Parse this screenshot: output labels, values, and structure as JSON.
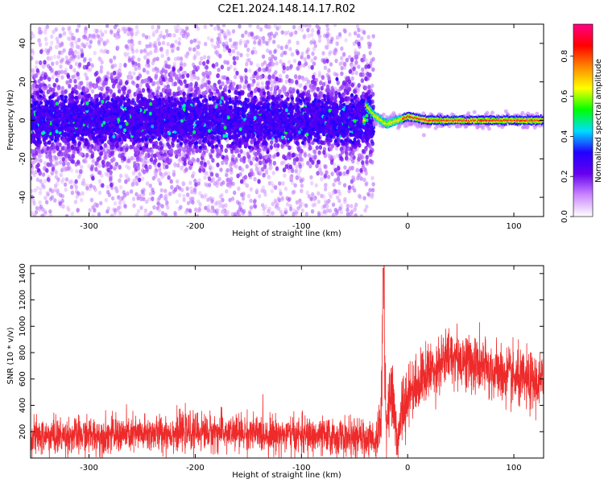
{
  "title": "C2E1.2024.148.14.17.R02",
  "colors": {
    "axis": "#000000",
    "snr_line": "#ee2a2a",
    "spectrogram_bg": "#ffffff"
  },
  "chart_data": [
    {
      "type": "heatmap",
      "xlabel": "Height of straight line (km)",
      "ylabel": "Frequency (Hz)",
      "xlim": [
        -355,
        128
      ],
      "ylim": [
        -50,
        50
      ],
      "xticks": [
        -300,
        -200,
        -100,
        0,
        100
      ],
      "yticks": [
        -40,
        -20,
        0,
        20,
        40
      ],
      "colorbar": {
        "label": "Normalized spectral amplitude",
        "range": [
          0.0,
          0.96
        ],
        "ticks": [
          0.0,
          0.2,
          0.4,
          0.6,
          0.8
        ],
        "colormap": [
          "#ffffff",
          "#cc88ff",
          "#6600ee",
          "#2200ff",
          "#00ddff",
          "#00ff00",
          "#ffff00",
          "#ff8800",
          "#ff0000",
          "#ff0088"
        ]
      },
      "description_points": {
        "noise_region_x": [
          -355,
          -32
        ],
        "ridge_x": [
          -32,
          128
        ],
        "ridge_path": [
          [
            -40,
            8
          ],
          [
            -30,
            2
          ],
          [
            -20,
            -2
          ],
          [
            -10,
            0
          ],
          [
            0,
            2
          ],
          [
            20,
            0
          ],
          [
            60,
            0
          ],
          [
            100,
            0
          ],
          [
            128,
            0
          ]
        ]
      }
    },
    {
      "type": "line",
      "xlabel": "Height of straight line (km)",
      "ylabel": "SNR (10 * v/v)",
      "xlim": [
        -355,
        128
      ],
      "ylim": [
        0,
        1460
      ],
      "xticks": [
        -300,
        -200,
        -100,
        0,
        100
      ],
      "yticks": [
        200,
        400,
        600,
        800,
        1000,
        1200,
        1400
      ],
      "series": [
        {
          "values_envelope": [
            [
              -355,
              160
            ],
            [
              -300,
              170
            ],
            [
              -250,
              180
            ],
            [
              -200,
              200
            ],
            [
              -150,
              190
            ],
            [
              -100,
              170
            ],
            [
              -50,
              150
            ],
            [
              -30,
              140
            ],
            [
              -25,
              300
            ],
            [
              -23,
              1460
            ],
            [
              -20,
              200
            ],
            [
              -15,
              600
            ],
            [
              -10,
              100
            ],
            [
              -5,
              400
            ],
            [
              0,
              500
            ],
            [
              20,
              650
            ],
            [
              40,
              780
            ],
            [
              60,
              720
            ],
            [
              80,
              660
            ],
            [
              100,
              600
            ],
            [
              128,
              560
            ]
          ]
        }
      ]
    }
  ]
}
